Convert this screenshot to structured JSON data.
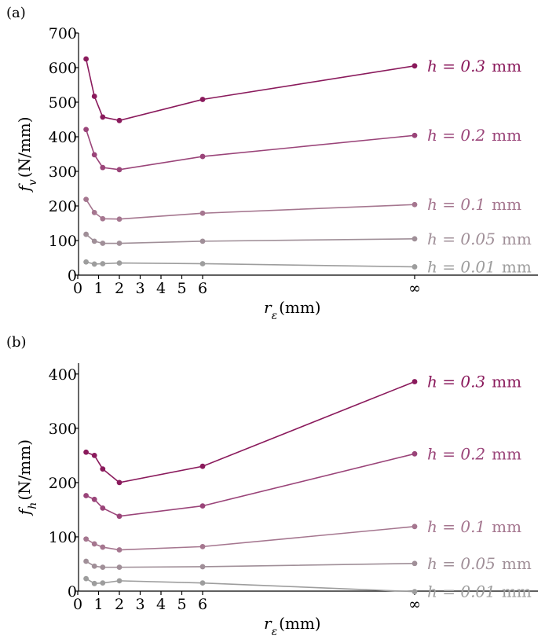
{
  "chart_data": [
    {
      "type": "line",
      "panel_label": "(a)",
      "ylabel_main": "f",
      "ylabel_sub": "v",
      "ylabel_unit": "(N/mm)",
      "xlabel_main": "r",
      "xlabel_sub": "ε",
      "xlabel_unit": "(mm)",
      "ylim": [
        0,
        700
      ],
      "yticks": [
        "0",
        "100",
        "200",
        "300",
        "400",
        "500",
        "600",
        "700"
      ],
      "xticks": [
        "0",
        "1",
        "2",
        "3",
        "4",
        "5",
        "6",
        "∞"
      ],
      "x": [
        "0.4",
        "0.8",
        "1.2",
        "2",
        "6",
        "∞"
      ],
      "series": [
        {
          "name": "h = 0.3",
          "unit": "mm",
          "color": "#8a1a5c",
          "values": [
            625,
            517,
            457,
            447,
            508,
            605
          ]
        },
        {
          "name": "h = 0.2",
          "unit": "mm",
          "color": "#9a4479",
          "values": [
            421,
            348,
            311,
            305,
            343,
            404
          ]
        },
        {
          "name": "h = 0.1",
          "unit": "mm",
          "color": "#a5768f",
          "values": [
            219,
            181,
            163,
            162,
            179,
            204
          ]
        },
        {
          "name": "h = 0.05",
          "unit": "mm",
          "color": "#a08f98",
          "values": [
            118,
            98,
            92,
            92,
            98,
            105
          ]
        },
        {
          "name": "h = 0.01",
          "unit": "mm",
          "color": "#9d9d9d",
          "values": [
            38,
            32,
            33,
            35,
            33,
            24
          ]
        }
      ]
    },
    {
      "type": "line",
      "panel_label": "(b)",
      "ylabel_main": "f",
      "ylabel_sub": "h",
      "ylabel_unit": "(N/mm)",
      "xlabel_main": "r",
      "xlabel_sub": "ε",
      "xlabel_unit": "(mm)",
      "ylim": [
        0,
        420
      ],
      "yticks": [
        "0",
        "100",
        "200",
        "300",
        "400"
      ],
      "xticks": [
        "0",
        "1",
        "2",
        "3",
        "4",
        "5",
        "6",
        "∞"
      ],
      "x": [
        "0.4",
        "0.8",
        "1.2",
        "2",
        "6",
        "∞"
      ],
      "series": [
        {
          "name": "h = 0.3",
          "unit": "mm",
          "color": "#8a1a5c",
          "values": [
            256,
            250,
            225,
            200,
            230,
            386
          ]
        },
        {
          "name": "h = 0.2",
          "unit": "mm",
          "color": "#9a4479",
          "values": [
            176,
            169,
            153,
            138,
            157,
            253
          ]
        },
        {
          "name": "h = 0.1",
          "unit": "mm",
          "color": "#a5768f",
          "values": [
            96,
            87,
            81,
            76,
            82,
            119
          ]
        },
        {
          "name": "h = 0.05",
          "unit": "mm",
          "color": "#a08f98",
          "values": [
            55,
            46,
            44,
            44,
            45,
            51
          ]
        },
        {
          "name": "h = 0.01",
          "unit": "mm",
          "color": "#9d9d9d",
          "values": [
            23,
            14,
            15,
            19,
            15,
            -1
          ]
        }
      ]
    }
  ]
}
